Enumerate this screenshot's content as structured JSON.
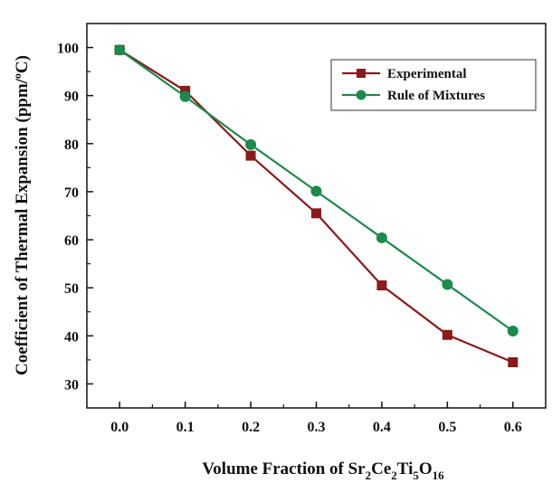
{
  "chart_data": {
    "type": "line",
    "x": [
      0.0,
      0.1,
      0.2,
      0.3,
      0.4,
      0.5,
      0.6
    ],
    "x_tick_labels": [
      "0.0",
      "0.1",
      "0.2",
      "0.3",
      "0.4",
      "0.5",
      "0.6"
    ],
    "y_ticks": [
      30,
      40,
      50,
      60,
      70,
      80,
      90,
      100
    ],
    "xlim": [
      -0.05,
      0.65
    ],
    "ylim": [
      25,
      105
    ],
    "xlabel": {
      "prefix": "Volume Fraction of Sr",
      "sub1": "2",
      "mid1": "Ce",
      "sub2": "2",
      "mid2": "Ti",
      "sub3": "5",
      "mid3": "O",
      "sub4": "16"
    },
    "ylabel": {
      "text": "Coefficient of Thermal Expansion (ppm/",
      "sup": "o",
      "suffix": "C)"
    },
    "legend_position": "top-right",
    "grid": false,
    "series": [
      {
        "name": "Experimental",
        "color": "#8B1A1A",
        "marker": "square",
        "values": [
          99.5,
          91.0,
          77.5,
          65.5,
          50.5,
          40.2,
          34.5
        ]
      },
      {
        "name": "Rule of Mixtures",
        "color": "#1B8A4A",
        "marker": "circle",
        "values": [
          99.5,
          89.8,
          79.8,
          70.1,
          60.4,
          50.7,
          41.0
        ]
      }
    ]
  }
}
